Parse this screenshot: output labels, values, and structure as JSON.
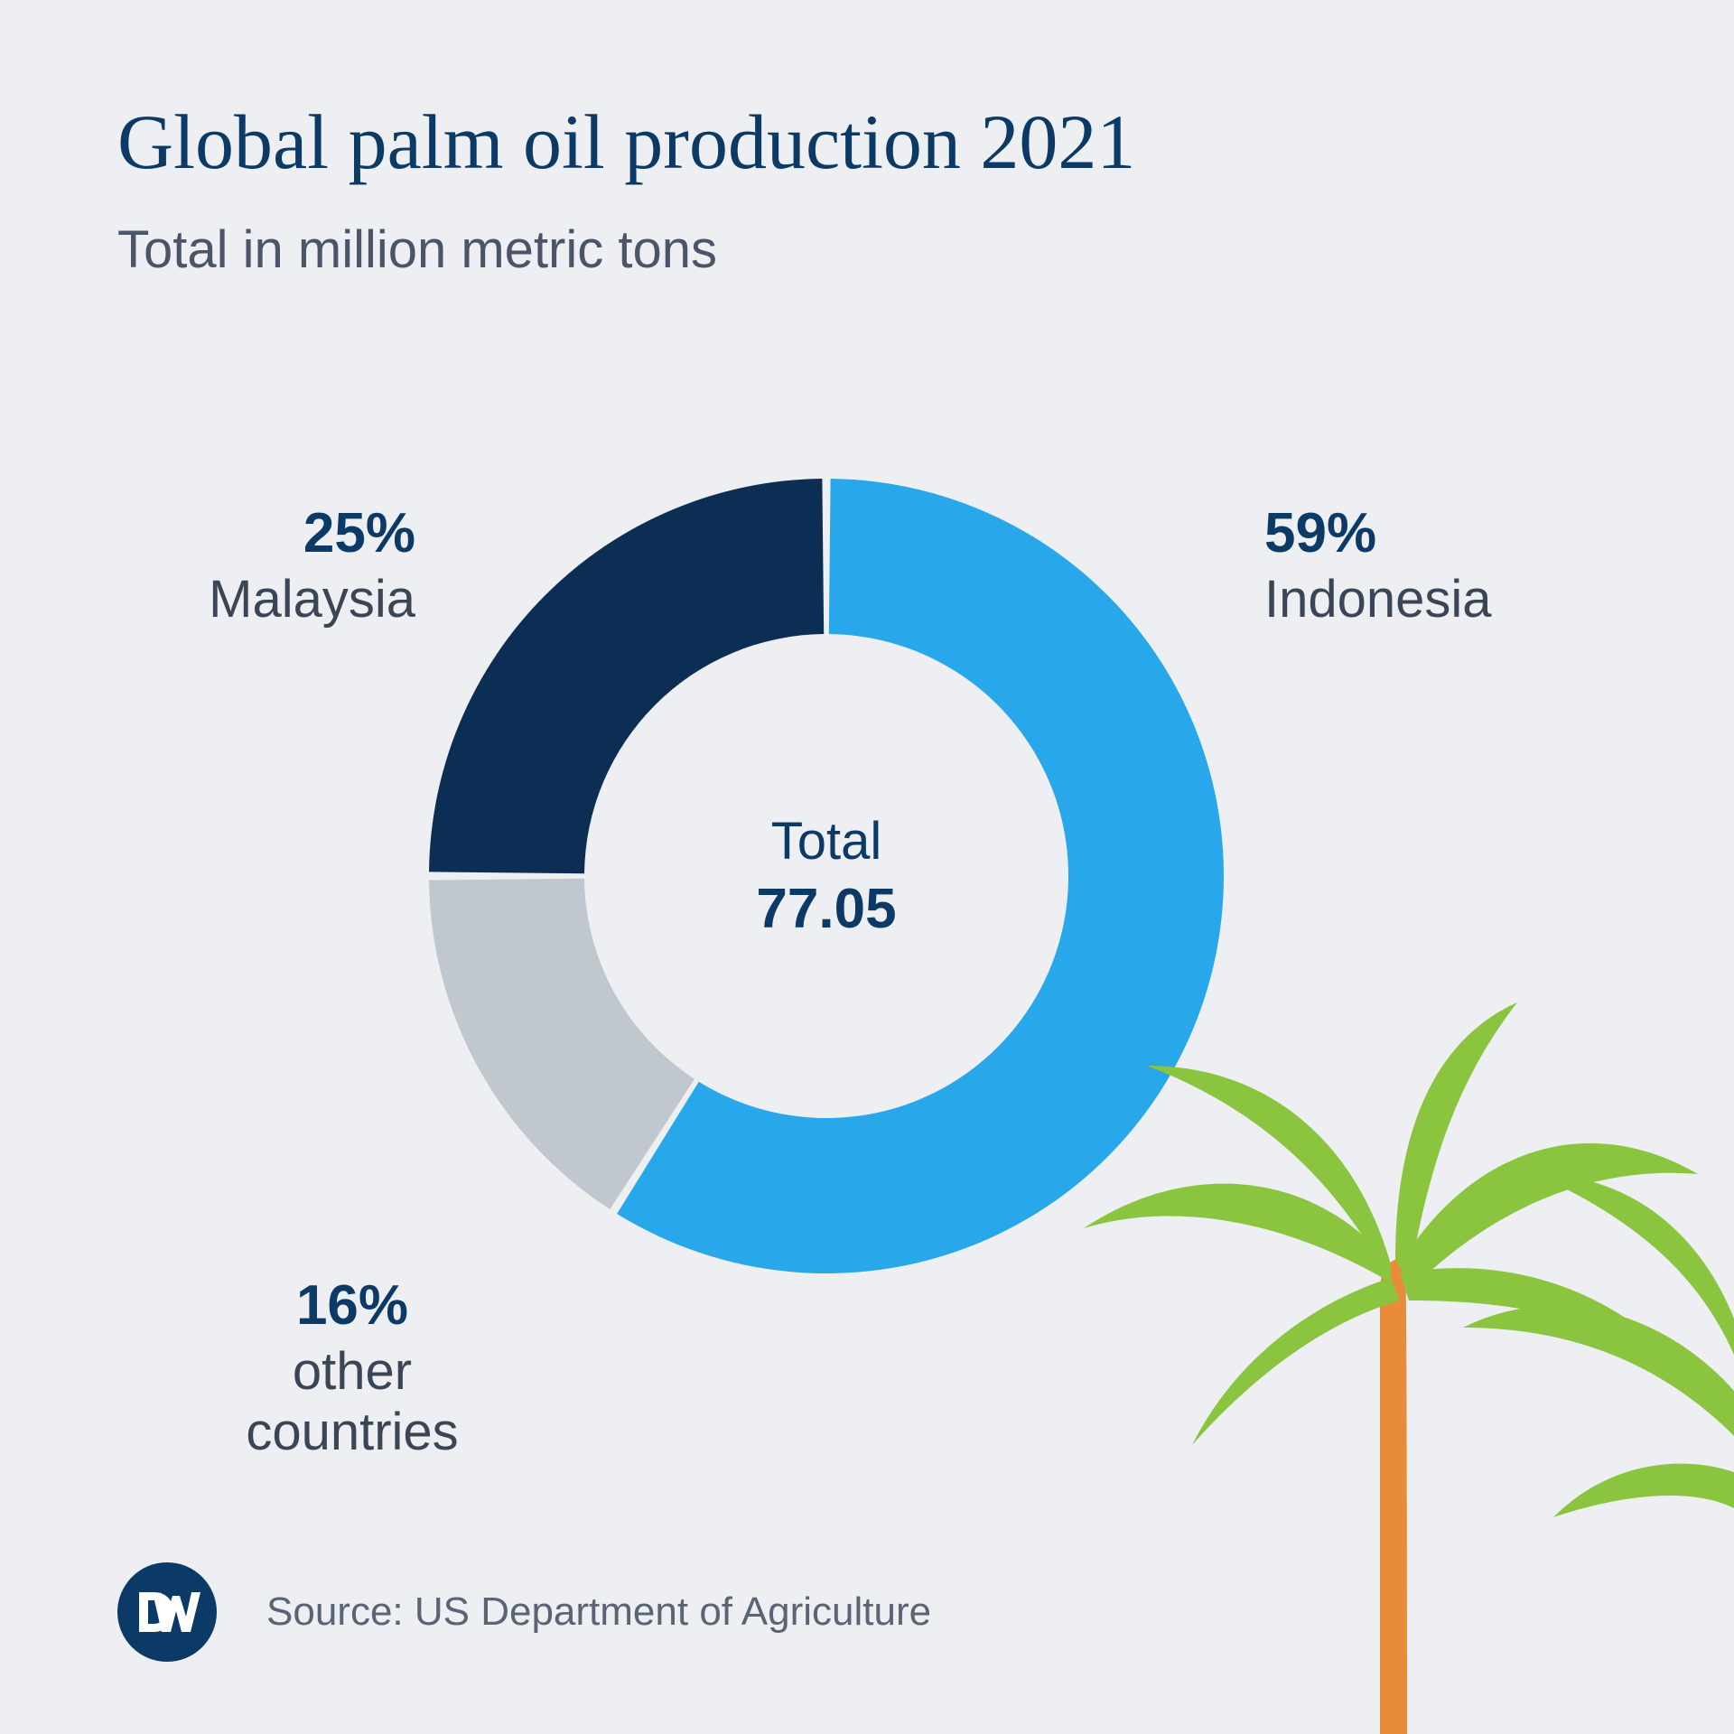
{
  "title": "Global palm oil production 2021",
  "subtitle": "Total in million metric tons",
  "chart": {
    "type": "donut",
    "center_label": "Total",
    "center_value": "77.05",
    "ring_outer_radius": 440,
    "ring_inner_radius": 268,
    "background_color": "#edeff2",
    "gap_deg": 1.2,
    "slices": [
      {
        "id": "indonesia",
        "label": "Indonesia",
        "pct": 59,
        "pct_text": "59%",
        "color": "#28a8ea"
      },
      {
        "id": "other",
        "label": "other countries",
        "pct": 16,
        "pct_text": "16%",
        "color": "#c0c7ce"
      },
      {
        "id": "malaysia",
        "label": "Malaysia",
        "pct": 25,
        "pct_text": "25%",
        "color": "#0c2e54"
      }
    ],
    "label_pct_fontsize": 62,
    "label_pct_weight": 700,
    "label_name_fontsize": 58,
    "center_fontsize": 58,
    "colors": {
      "title": "#0c3a66",
      "subtitle": "#4a5568",
      "label_pct": "#0c3a66",
      "label_name": "#3a4656"
    }
  },
  "footer": {
    "source": "Source: US Department of Agriculture",
    "logo_bg": "#0c3a66",
    "logo_text": "DW"
  },
  "decoration": {
    "palm_leaf_color": "#8bc53f",
    "palm_trunk_color": "#e88b3a"
  }
}
